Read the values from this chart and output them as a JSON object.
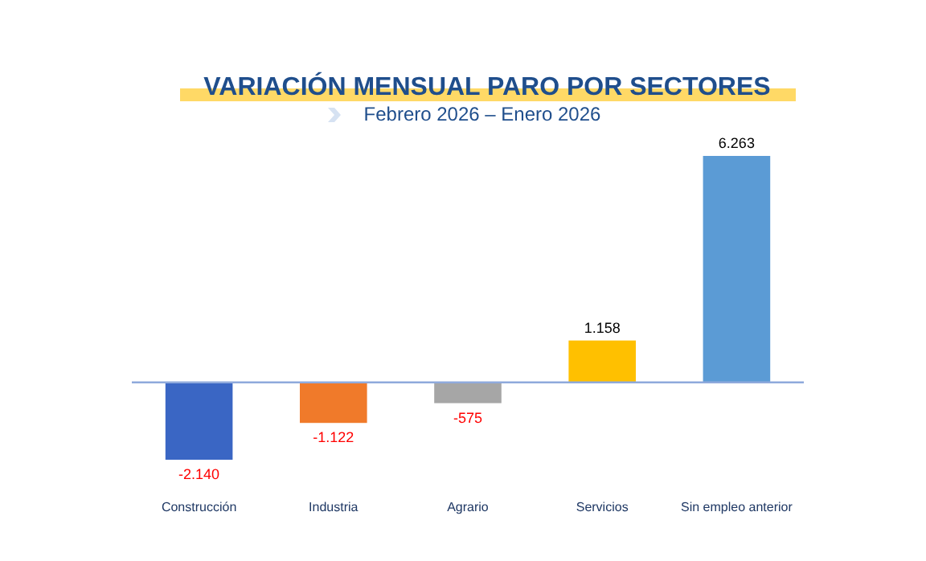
{
  "chart_data": {
    "type": "bar",
    "title": "VARIACIÓN MENSUAL PARO POR SECTORES",
    "subtitle": "Febrero 2026 – Enero 2026",
    "categories": [
      "Construcción",
      "Industria",
      "Agrario",
      "Servicios",
      "Sin empleo anterior"
    ],
    "values": [
      -2140,
      -1122,
      -575,
      1158,
      6263
    ],
    "colors": [
      "#3a66c4",
      "#f07a2a",
      "#a6a6a6",
      "#ffc000",
      "#5b9bd5"
    ],
    "value_labels": [
      "-2.140",
      "-1.122",
      "-575",
      "1.158",
      "6.263"
    ],
    "ref_lines": [
      {
        "axis": "y",
        "value": 0,
        "color": "#8faadc"
      }
    ]
  }
}
